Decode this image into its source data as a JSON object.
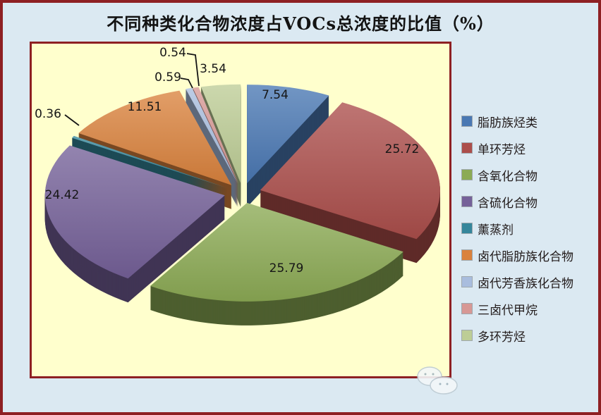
{
  "window": {
    "background_color": "#dbe9f2",
    "border_color": "#8e2023",
    "plot_background_color": "#ffffcd"
  },
  "chart_data": {
    "type": "pie",
    "style": "3d-exploded",
    "title": "不同种类化合物浓度占VOCs总浓度的比值（%）",
    "unit": "%",
    "legend_position": "right",
    "start_angle_deg": -90,
    "direction": "clockwise",
    "categories": [
      "脂肪族烃类",
      "单环芳烃",
      "含氧化合物",
      "含硫化合物",
      "薰蒸剂",
      "卤代脂肪族化合物",
      "卤代芳香族化合物",
      "三卤代甲烷",
      "多环芳烃"
    ],
    "values": [
      7.54,
      25.72,
      25.79,
      24.42,
      0.36,
      11.51,
      0.59,
      0.54,
      3.54
    ],
    "labels": [
      "7.54",
      "25.72",
      "25.79",
      "24.42",
      "0.36",
      "11.51",
      "0.59",
      "0.54",
      "3.54"
    ],
    "colors": [
      "#4a78b3",
      "#ac4e4b",
      "#8cab55",
      "#756199",
      "#35869b",
      "#da823d",
      "#a9bdde",
      "#d79895",
      "#bdcd96"
    ]
  }
}
